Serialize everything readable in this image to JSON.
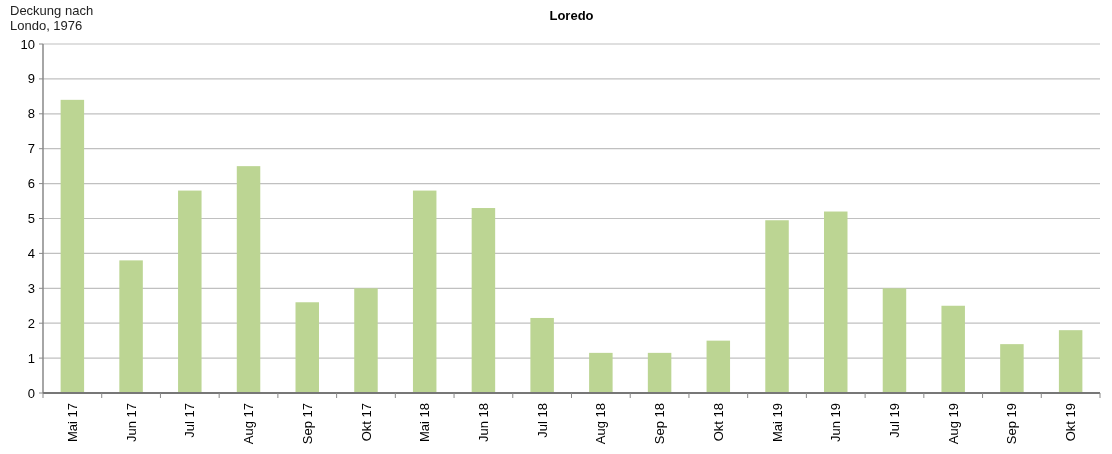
{
  "chart_data": {
    "type": "bar",
    "title": "Loredo",
    "ylabel": "Deckung nach\nLondo, 1976",
    "categories": [
      "Mai 17",
      "Jun 17",
      "Jul 17",
      "Aug 17",
      "Sep 17",
      "Okt 17",
      "Mai 18",
      "Jun 18",
      "Jul 18",
      "Aug 18",
      "Sep 18",
      "Okt 18",
      "Mai 19",
      "Jun 19",
      "Jul 19",
      "Aug 19",
      "Sep 19",
      "Okt 19"
    ],
    "values": [
      8.4,
      3.8,
      5.8,
      6.5,
      2.6,
      3.0,
      5.8,
      5.3,
      2.15,
      1.15,
      1.15,
      1.5,
      4.95,
      5.2,
      3.0,
      2.5,
      1.4,
      1.8
    ],
    "color": "#bcd593",
    "ylim": [
      0,
      10
    ],
    "yticks": [
      0,
      1,
      2,
      3,
      4,
      5,
      6,
      7,
      8,
      9,
      10
    ],
    "grid": "y"
  }
}
